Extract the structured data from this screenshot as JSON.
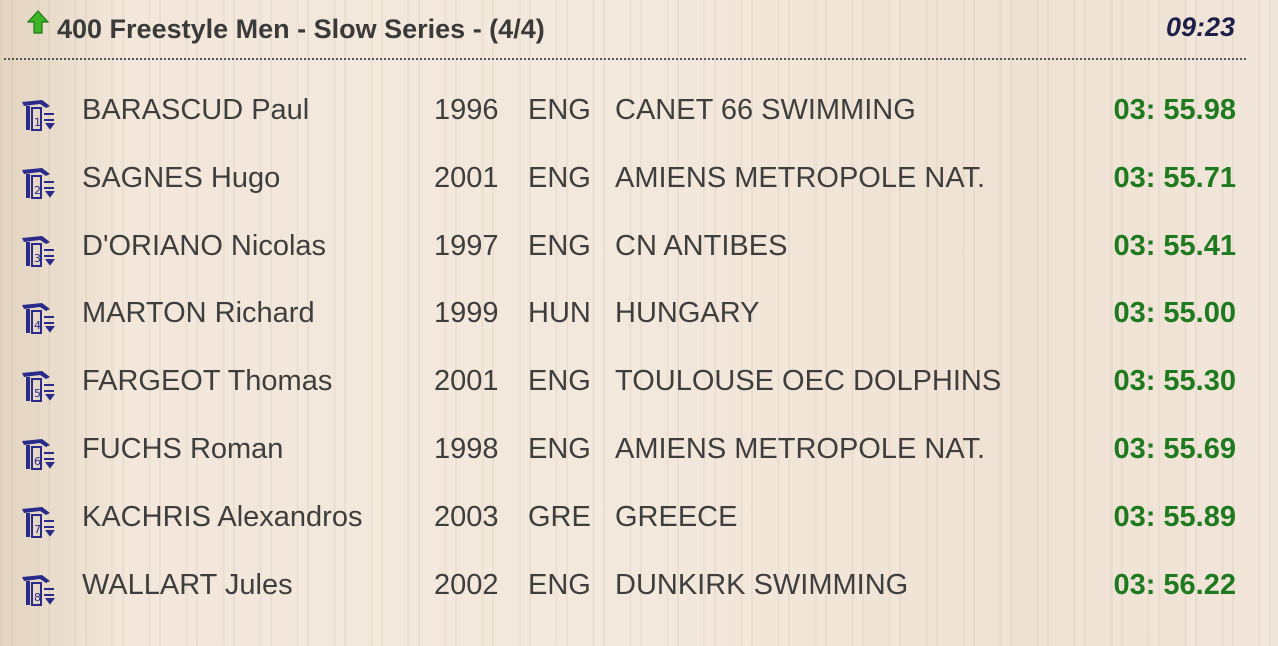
{
  "header": {
    "title": "400 Freestyle Men - Slow Series - (4/4)",
    "clock": "09:23",
    "icon": "green-up-arrow-icon"
  },
  "colors": {
    "time": "#1f7a1f",
    "clock": "#1e1e4a",
    "lane_icon": "#2a2a8a",
    "arrow": "#3cb526"
  },
  "rows": [
    {
      "lane": "1",
      "name": "BARASCUD Paul",
      "year": "1996",
      "country": "ENG",
      "club": "CANET 66 SWIMMING",
      "time": "03: 55.98"
    },
    {
      "lane": "2",
      "name": "SAGNES Hugo",
      "year": "2001",
      "country": "ENG",
      "club": "AMIENS METROPOLE NAT.",
      "time": "03: 55.71"
    },
    {
      "lane": "3",
      "name": "D'ORIANO Nicolas",
      "year": "1997",
      "country": "ENG",
      "club": "CN ANTIBES",
      "time": "03: 55.41"
    },
    {
      "lane": "4",
      "name": "MARTON Richard",
      "year": "1999",
      "country": "HUN",
      "club": "HUNGARY",
      "time": "03: 55.00"
    },
    {
      "lane": "5",
      "name": "FARGEOT Thomas",
      "year": "2001",
      "country": "ENG",
      "club": "TOULOUSE OEC DOLPHINS",
      "time": "03: 55.30"
    },
    {
      "lane": "6",
      "name": "FUCHS Roman",
      "year": "1998",
      "country": "ENG",
      "club": "AMIENS METROPOLE NAT.",
      "time": "03: 55.69"
    },
    {
      "lane": "7",
      "name": "KACHRIS Alexandros",
      "year": "2003",
      "country": "GRE",
      "club": "GREECE",
      "time": "03: 55.89"
    },
    {
      "lane": "8",
      "name": "WALLART Jules",
      "year": "2002",
      "country": "ENG",
      "club": "DUNKIRK SWIMMING",
      "time": "03: 56.22"
    }
  ]
}
